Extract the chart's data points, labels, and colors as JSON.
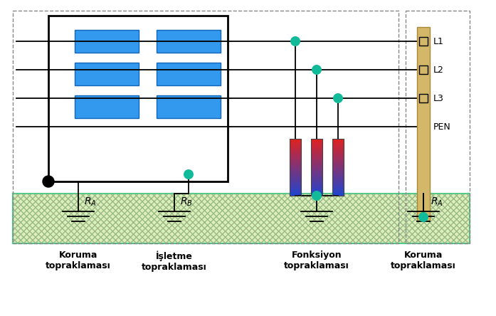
{
  "fig_width": 6.97,
  "fig_height": 4.44,
  "dpi": 100,
  "bg_color": "#ffffff",
  "ground_fill": "#ddeebb",
  "ground_stroke": "#44cc88",
  "ground_hatch_color": "#aaccaa",
  "transformer_color": "#3399ee",
  "bus_color": "#d4b86a",
  "bus_edge_color": "#aa8833",
  "node_color": "#11bb99",
  "wire_color": "#000000",
  "resistor_top_color": "#dd2222",
  "resistor_bot_color": "#2244cc",
  "label_L1": "L1",
  "label_L2": "L2",
  "label_L3": "L3",
  "label_PEN": "PEN",
  "label_RA1": "$R_A$",
  "label_RB": "$R_B$",
  "label_RA2": "$R_A$",
  "labels_bottom": [
    "Koruma\ntopraklaması",
    "İşletme\ntopraklaması",
    "Fonksiyon\ntopraklaması",
    "Koruma\ntopraklaması"
  ]
}
